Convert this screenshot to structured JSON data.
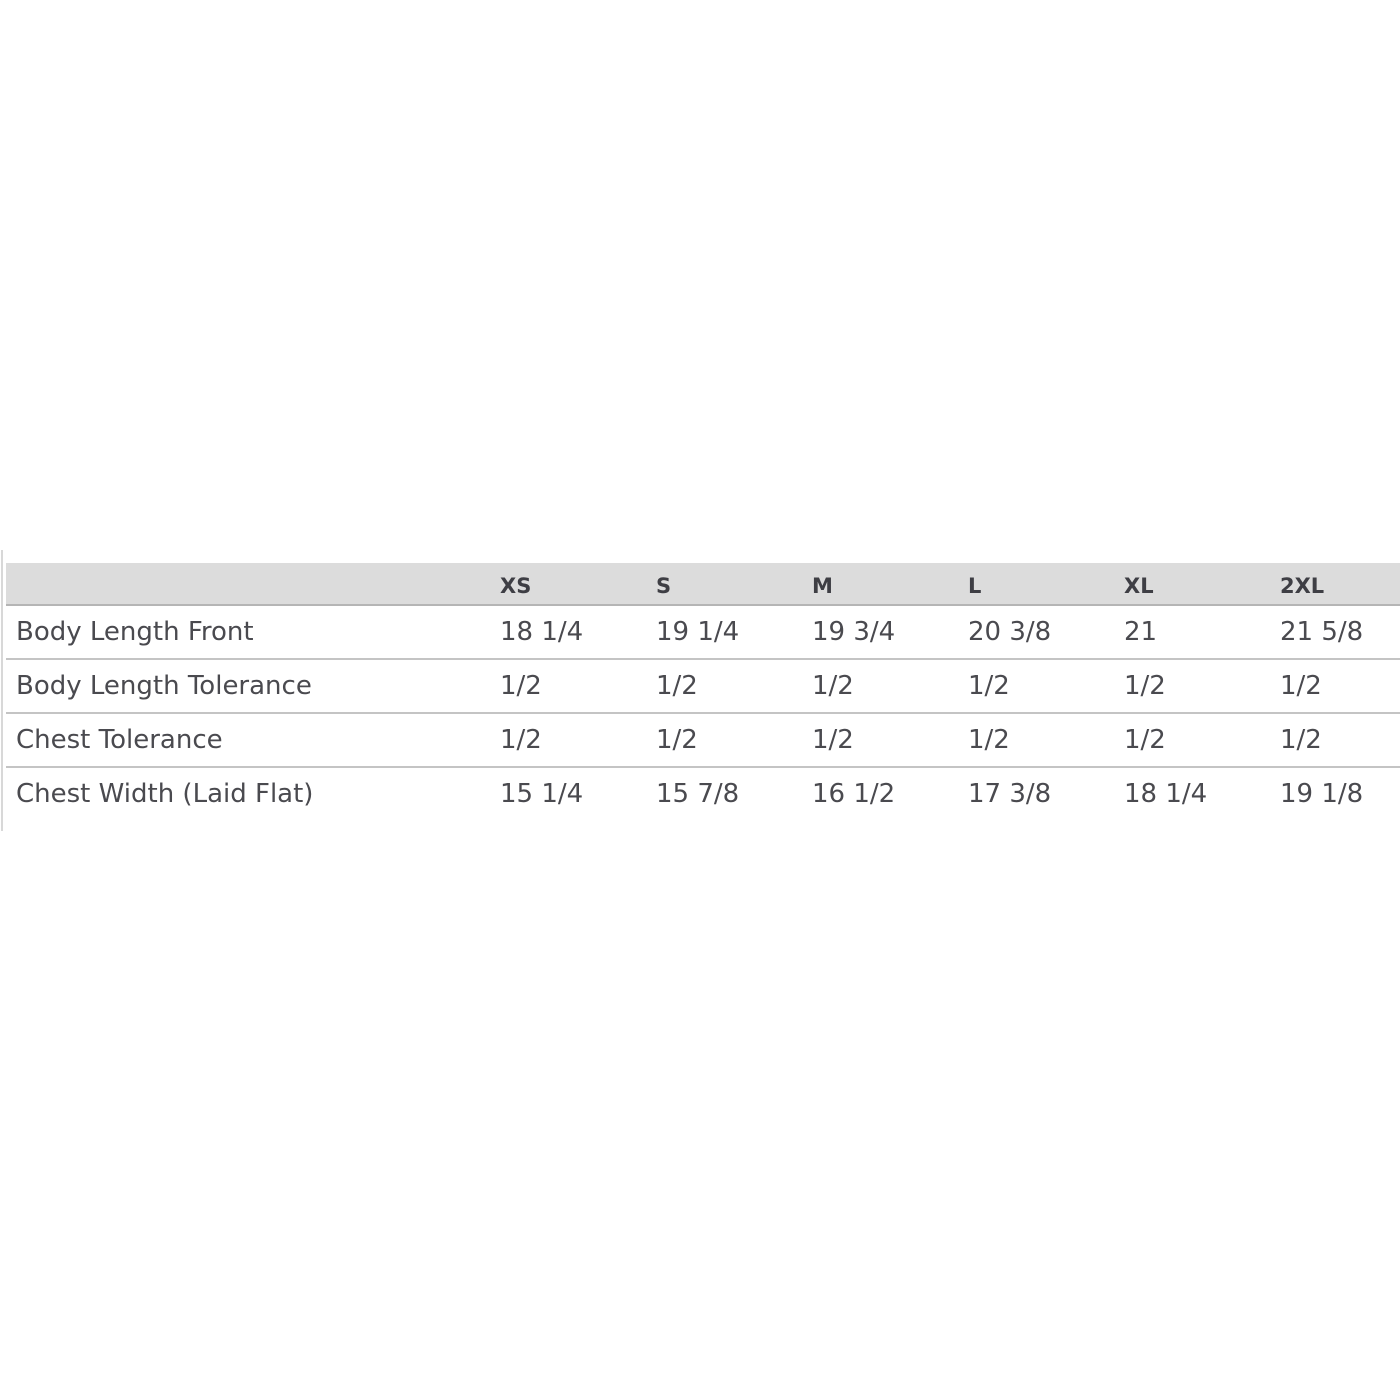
{
  "table": {
    "headers": [
      "",
      "XS",
      "S",
      "M",
      "L",
      "XL",
      "2XL"
    ],
    "rows": [
      {
        "label": "Body Length Front",
        "values": [
          "18 1/4",
          "19 1/4",
          "19 3/4",
          "20 3/8",
          "21",
          "21 5/8"
        ]
      },
      {
        "label": "Body Length Tolerance",
        "values": [
          "1/2",
          "1/2",
          "1/2",
          "1/2",
          "1/2",
          "1/2"
        ]
      },
      {
        "label": "Chest Tolerance",
        "values": [
          "1/2",
          "1/2",
          "1/2",
          "1/2",
          "1/2",
          "1/2"
        ]
      },
      {
        "label": "Chest Width (Laid Flat)",
        "values": [
          "15 1/4",
          "15 7/8",
          "16 1/2",
          "17 3/8",
          "18 1/4",
          "19 1/8"
        ]
      }
    ]
  }
}
